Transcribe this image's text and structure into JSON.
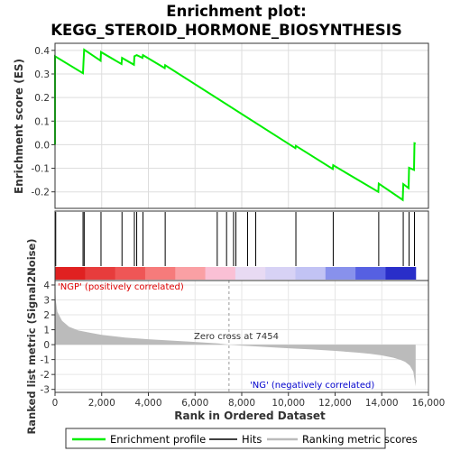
{
  "title_line1": "Enrichment plot:",
  "title_line2": "KEGG_STEROID_HORMONE_BIOSYNTHESIS",
  "colors": {
    "enrichment": "#00ee00",
    "hits": "#000000",
    "metric_fill": "#bbbbbb",
    "positive_text": "#dd0000",
    "negative_text": "#0000cc",
    "zero_line": "#999999"
  },
  "chart_data": [
    {
      "type": "line",
      "name": "enrichment-profile",
      "ylabel": "Enrichment score (ES)",
      "ylim": [
        -0.27,
        0.43
      ],
      "yticks": [
        -0.2,
        -0.1,
        0.0,
        0.1,
        0.2,
        0.3,
        0.4
      ],
      "ytick_labels": [
        "-0.2",
        "-0.1",
        "0.0",
        "0.1",
        "0.2",
        "0.3",
        "0.4"
      ],
      "xlim": [
        0,
        16000
      ],
      "grid": true,
      "series": [
        {
          "name": "Enrichment profile",
          "x": [
            0,
            0,
            1200,
            1220,
            1250,
            1950,
            1970,
            2850,
            2870,
            3380,
            3400,
            3500,
            3750,
            3770,
            4700,
            4720,
            10300,
            10320,
            11900,
            11920,
            13850,
            13870,
            14900,
            14920,
            15150,
            15170,
            15380,
            15400,
            15450
          ],
          "y": [
            0.0,
            0.375,
            0.303,
            0.352,
            0.403,
            0.356,
            0.393,
            0.342,
            0.368,
            0.339,
            0.375,
            0.38,
            0.368,
            0.38,
            0.325,
            0.337,
            -0.015,
            -0.005,
            -0.103,
            -0.087,
            -0.2,
            -0.165,
            -0.234,
            -0.167,
            -0.184,
            -0.098,
            -0.107,
            0.006,
            0.005
          ]
        }
      ]
    },
    {
      "type": "hits",
      "name": "hit-positions",
      "x": [
        30,
        1200,
        1250,
        1970,
        2870,
        3400,
        3500,
        3770,
        4720,
        6950,
        7350,
        7650,
        7750,
        8250,
        8600,
        10320,
        11920,
        13870,
        14920,
        15170,
        15400
      ]
    },
    {
      "type": "area",
      "name": "ranked-list-metric",
      "ylabel": "Ranked list metric (Signal2Noise)",
      "xlabel": "Rank in Ordered Dataset",
      "xlim": [
        0,
        16000
      ],
      "xticks": [
        0,
        2000,
        4000,
        6000,
        8000,
        10000,
        12000,
        14000,
        16000
      ],
      "xtick_labels": [
        "0",
        "2,000",
        "4,000",
        "6,000",
        "8,000",
        "10,000",
        "12,000",
        "14,000",
        "16,000"
      ],
      "ylim": [
        -3.2,
        4.3
      ],
      "yticks": [
        -3,
        -2,
        -1,
        0,
        1,
        2,
        3,
        4
      ],
      "ytick_labels": [
        "-3",
        "-2",
        "-1",
        "0",
        "1",
        "2",
        "3",
        "4"
      ],
      "x": [
        0,
        30,
        100,
        300,
        600,
        1000,
        1500,
        2000,
        3000,
        4000,
        5000,
        6000,
        7000,
        7454,
        8000,
        9000,
        10000,
        11000,
        12000,
        13000,
        13500,
        14000,
        14500,
        14800,
        15000,
        15200,
        15350,
        15450
      ],
      "y": [
        4.0,
        3.0,
        2.2,
        1.6,
        1.2,
        0.95,
        0.8,
        0.65,
        0.48,
        0.36,
        0.27,
        0.18,
        0.08,
        0.0,
        -0.06,
        -0.15,
        -0.24,
        -0.32,
        -0.42,
        -0.54,
        -0.62,
        -0.72,
        -0.88,
        -1.02,
        -1.15,
        -1.4,
        -1.8,
        -2.8
      ],
      "zero_cross": 7454,
      "annotations": {
        "positive": "'NGP' (positively correlated)",
        "negative": "'NG' (negatively correlated)",
        "zero": "Zero cross at 7454"
      }
    }
  ],
  "legend": {
    "items": [
      {
        "label": "Enrichment profile"
      },
      {
        "label": "Hits"
      },
      {
        "label": "Ranking metric scores"
      }
    ]
  }
}
